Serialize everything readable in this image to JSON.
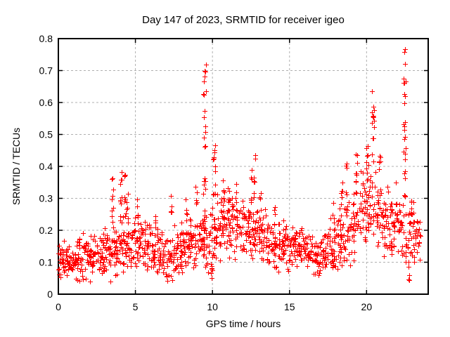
{
  "title": "Day 147 of 2023, SRMTID for receiver igeo",
  "chart_data": {
    "type": "scatter",
    "title": "Day 147 of 2023, SRMTID for receiver igeo",
    "xlabel": "GPS time / hours",
    "ylabel": "SRMTID / TECUs",
    "xlim": [
      0,
      24
    ],
    "ylim": [
      0,
      0.8
    ],
    "xticks": [
      0,
      5,
      10,
      15,
      20
    ],
    "yticks": [
      0,
      0.1,
      0.2,
      0.3,
      0.4,
      0.5,
      0.6,
      0.7,
      0.8
    ],
    "grid": true,
    "legend_position": "none",
    "marker": "plus",
    "marker_color": "#ff0000",
    "grid_color": "#b0b0b0",
    "axis_color": "#000000",
    "background_color": "#ffffff",
    "seed": 42,
    "series": [
      {
        "name": "SRMTID",
        "sampling": "dense 1-minute scatter, ~1500 points, envelope read from plot",
        "bands_t0_t1_n_center_halfspread": [
          [
            0.0,
            0.5,
            30,
            0.105,
            0.05
          ],
          [
            0.5,
            1.0,
            30,
            0.105,
            0.05
          ],
          [
            1.0,
            1.5,
            30,
            0.11,
            0.055
          ],
          [
            1.5,
            2.0,
            30,
            0.115,
            0.06
          ],
          [
            2.0,
            2.5,
            30,
            0.115,
            0.06
          ],
          [
            2.5,
            3.0,
            30,
            0.12,
            0.065
          ],
          [
            3.0,
            3.5,
            30,
            0.125,
            0.065
          ],
          [
            3.5,
            4.0,
            30,
            0.14,
            0.07
          ],
          [
            4.0,
            4.5,
            30,
            0.16,
            0.08
          ],
          [
            4.5,
            5.0,
            30,
            0.16,
            0.08
          ],
          [
            5.0,
            5.5,
            30,
            0.15,
            0.075
          ],
          [
            5.5,
            6.0,
            30,
            0.14,
            0.07
          ],
          [
            6.0,
            6.5,
            30,
            0.14,
            0.07
          ],
          [
            6.5,
            7.0,
            30,
            0.12,
            0.06
          ],
          [
            7.0,
            7.5,
            30,
            0.12,
            0.06
          ],
          [
            7.5,
            8.0,
            30,
            0.14,
            0.07
          ],
          [
            8.0,
            8.5,
            30,
            0.15,
            0.07
          ],
          [
            8.5,
            9.0,
            30,
            0.17,
            0.08
          ],
          [
            9.0,
            9.5,
            30,
            0.18,
            0.08
          ],
          [
            9.5,
            10.0,
            28,
            0.17,
            0.09
          ],
          [
            10.0,
            10.5,
            30,
            0.2,
            0.09
          ],
          [
            10.5,
            11.0,
            30,
            0.21,
            0.085
          ],
          [
            11.0,
            11.5,
            30,
            0.21,
            0.08
          ],
          [
            11.5,
            12.0,
            30,
            0.2,
            0.075
          ],
          [
            12.0,
            12.5,
            30,
            0.21,
            0.07
          ],
          [
            12.5,
            13.0,
            30,
            0.2,
            0.07
          ],
          [
            13.0,
            13.5,
            30,
            0.18,
            0.07
          ],
          [
            13.5,
            14.0,
            30,
            0.16,
            0.07
          ],
          [
            14.0,
            14.5,
            30,
            0.15,
            0.065
          ],
          [
            14.5,
            15.0,
            30,
            0.15,
            0.06
          ],
          [
            15.0,
            15.5,
            30,
            0.145,
            0.055
          ],
          [
            15.5,
            16.0,
            30,
            0.14,
            0.055
          ],
          [
            16.0,
            16.5,
            30,
            0.13,
            0.05
          ],
          [
            16.5,
            17.0,
            30,
            0.12,
            0.05
          ],
          [
            17.0,
            17.5,
            30,
            0.135,
            0.06
          ],
          [
            17.5,
            18.0,
            30,
            0.15,
            0.07
          ],
          [
            18.0,
            18.5,
            30,
            0.17,
            0.08
          ],
          [
            18.5,
            19.0,
            30,
            0.19,
            0.085
          ],
          [
            19.0,
            19.5,
            30,
            0.22,
            0.1
          ],
          [
            19.5,
            20.0,
            30,
            0.26,
            0.11
          ],
          [
            20.0,
            20.5,
            30,
            0.27,
            0.11
          ],
          [
            20.5,
            21.0,
            30,
            0.27,
            0.1
          ],
          [
            21.0,
            21.5,
            30,
            0.23,
            0.09
          ],
          [
            21.5,
            22.0,
            30,
            0.2,
            0.08
          ],
          [
            22.0,
            22.4,
            24,
            0.2,
            0.08
          ],
          [
            22.4,
            22.7,
            10,
            0.17,
            0.1
          ],
          [
            22.7,
            23.1,
            24,
            0.19,
            0.08
          ],
          [
            23.1,
            23.5,
            20,
            0.18,
            0.06
          ]
        ],
        "spikes_t0_t1_n_ymin_ymax": [
          [
            3.45,
            3.58,
            10,
            0.2,
            0.39
          ],
          [
            4.0,
            4.12,
            10,
            0.22,
            0.39
          ],
          [
            4.25,
            4.35,
            6,
            0.28,
            0.375
          ],
          [
            4.4,
            4.5,
            4,
            0.25,
            0.33
          ],
          [
            5.05,
            5.15,
            4,
            0.22,
            0.3
          ],
          [
            6.25,
            6.35,
            4,
            0.2,
            0.26
          ],
          [
            7.25,
            7.35,
            5,
            0.22,
            0.32
          ],
          [
            8.25,
            8.35,
            5,
            0.22,
            0.31
          ],
          [
            8.9,
            9.0,
            5,
            0.25,
            0.35
          ],
          [
            9.4,
            9.6,
            22,
            0.3,
            0.76
          ],
          [
            9.42,
            9.5,
            6,
            0.2,
            0.3
          ],
          [
            9.85,
            9.98,
            5,
            0.05,
            0.1
          ],
          [
            10.05,
            10.2,
            12,
            0.3,
            0.47
          ],
          [
            10.65,
            10.78,
            6,
            0.25,
            0.36
          ],
          [
            11.0,
            11.1,
            5,
            0.26,
            0.34
          ],
          [
            11.45,
            11.55,
            4,
            0.28,
            0.35
          ],
          [
            12.45,
            12.55,
            6,
            0.28,
            0.4
          ],
          [
            12.65,
            12.8,
            8,
            0.28,
            0.435
          ],
          [
            13.05,
            13.15,
            4,
            0.25,
            0.32
          ],
          [
            14.0,
            14.1,
            4,
            0.2,
            0.28
          ],
          [
            17.8,
            17.9,
            4,
            0.22,
            0.3
          ],
          [
            18.3,
            18.45,
            6,
            0.28,
            0.36
          ],
          [
            18.65,
            18.78,
            5,
            0.3,
            0.42
          ],
          [
            19.25,
            19.4,
            8,
            0.35,
            0.47
          ],
          [
            20.0,
            20.1,
            6,
            0.35,
            0.47
          ],
          [
            20.35,
            20.5,
            14,
            0.38,
            0.64
          ],
          [
            20.8,
            20.9,
            5,
            0.35,
            0.45
          ],
          [
            21.9,
            22.0,
            4,
            0.28,
            0.36
          ],
          [
            22.4,
            22.55,
            20,
            0.42,
            0.775
          ],
          [
            22.42,
            22.5,
            6,
            0.3,
            0.42
          ],
          [
            22.7,
            22.8,
            5,
            0.04,
            0.09
          ],
          [
            22.85,
            22.95,
            5,
            0.22,
            0.3
          ]
        ],
        "notable_maxima": [
          {
            "t": 3.5,
            "y": 0.39
          },
          {
            "t": 4.05,
            "y": 0.39
          },
          {
            "t": 9.5,
            "y": 0.76
          },
          {
            "t": 10.1,
            "y": 0.47
          },
          {
            "t": 12.7,
            "y": 0.435
          },
          {
            "t": 19.3,
            "y": 0.47
          },
          {
            "t": 20.4,
            "y": 0.64
          },
          {
            "t": 22.45,
            "y": 0.775
          }
        ]
      }
    ]
  }
}
